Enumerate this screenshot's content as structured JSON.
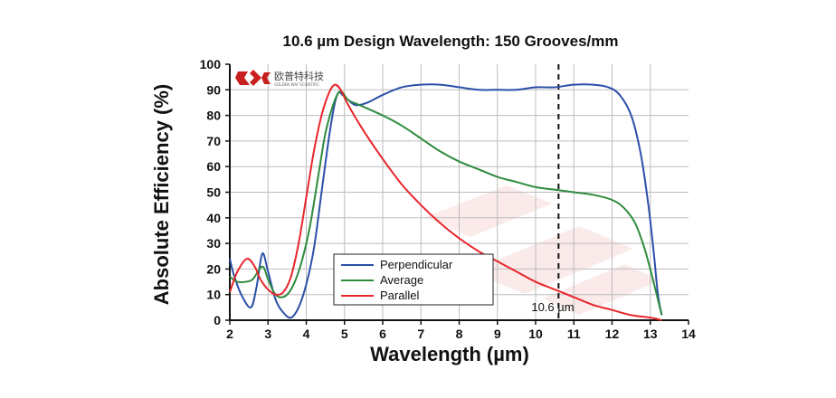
{
  "logo": {
    "name": "欧普特科技",
    "subtitle": "GOLDEN WAY SCIENTIFIC"
  },
  "chart_data": {
    "type": "line",
    "title": "10.6 µm Design Wavelength: 150 Grooves/mm",
    "xlabel": "Wavelength (µm)",
    "ylabel": "Absolute Efficiency (%)",
    "xlim": [
      2,
      14
    ],
    "ylim": [
      0,
      100
    ],
    "xticks": [
      2,
      3,
      4,
      5,
      6,
      7,
      8,
      9,
      10,
      11,
      12,
      13,
      14
    ],
    "yticks": [
      0,
      10,
      20,
      30,
      40,
      50,
      60,
      70,
      80,
      90,
      100
    ],
    "grid": true,
    "legend_position": "bottom-left",
    "series": [
      {
        "name": "Perpendicular",
        "color": "#2b4fa8",
        "x": [
          2.0,
          2.1,
          2.3,
          2.55,
          2.7,
          2.85,
          3.0,
          3.2,
          3.4,
          3.6,
          3.8,
          4.0,
          4.2,
          4.4,
          4.6,
          4.75,
          4.85,
          4.95,
          5.1,
          5.3,
          5.6,
          6.0,
          6.5,
          7.0,
          7.5,
          8.0,
          8.5,
          9.0,
          9.5,
          10.0,
          10.5,
          11.0,
          11.5,
          11.9,
          12.2,
          12.5,
          12.75,
          12.95,
          13.1,
          13.2,
          13.3
        ],
        "y": [
          24,
          18,
          10,
          5,
          13,
          26,
          19,
          8,
          3,
          1,
          5,
          14,
          28,
          50,
          72,
          85,
          89,
          88,
          86,
          84,
          85,
          88,
          91,
          92,
          92,
          91,
          90,
          90,
          90,
          91,
          91,
          92,
          92,
          91,
          88,
          80,
          65,
          45,
          25,
          10,
          2
        ]
      },
      {
        "name": "Average",
        "color": "#2e8b3e",
        "x": [
          2.0,
          2.2,
          2.4,
          2.6,
          2.85,
          3.0,
          3.15,
          3.3,
          3.5,
          3.7,
          3.9,
          4.1,
          4.3,
          4.5,
          4.7,
          4.85,
          4.95,
          5.1,
          5.4,
          6.0,
          6.5,
          7.0,
          7.5,
          8.0,
          8.5,
          9.0,
          9.5,
          10.0,
          10.5,
          11.0,
          11.5,
          12.0,
          12.3,
          12.6,
          12.85,
          13.05,
          13.2,
          13.3
        ],
        "y": [
          17,
          15,
          15,
          16,
          21,
          16,
          11,
          9,
          10,
          15,
          24,
          37,
          55,
          73,
          84,
          89,
          89,
          86,
          84,
          80,
          76,
          71,
          66,
          62,
          59,
          56,
          54,
          52,
          51,
          50,
          49,
          47,
          44,
          38,
          28,
          17,
          8,
          2
        ]
      },
      {
        "name": "Parallel",
        "color": "#e8262b",
        "x": [
          2.0,
          2.2,
          2.45,
          2.65,
          2.8,
          3.0,
          3.2,
          3.4,
          3.6,
          3.8,
          4.0,
          4.2,
          4.4,
          4.6,
          4.75,
          4.9,
          5.1,
          5.5,
          6.0,
          6.5,
          7.0,
          7.5,
          8.0,
          8.5,
          9.0,
          9.5,
          10.0,
          10.5,
          11.0,
          11.5,
          12.0,
          12.5,
          13.0,
          13.3
        ],
        "y": [
          11,
          19,
          24,
          21,
          16,
          12,
          10,
          11,
          17,
          30,
          48,
          66,
          80,
          89,
          92,
          90,
          84,
          74,
          63,
          53,
          45,
          38,
          32,
          27,
          23,
          19,
          15,
          12,
          9,
          6,
          4,
          2,
          1,
          0
        ]
      }
    ],
    "annotations": [
      {
        "type": "vline",
        "x": 10.6,
        "style": "dashed",
        "color": "#111111",
        "label": "10.6 µm"
      }
    ]
  }
}
